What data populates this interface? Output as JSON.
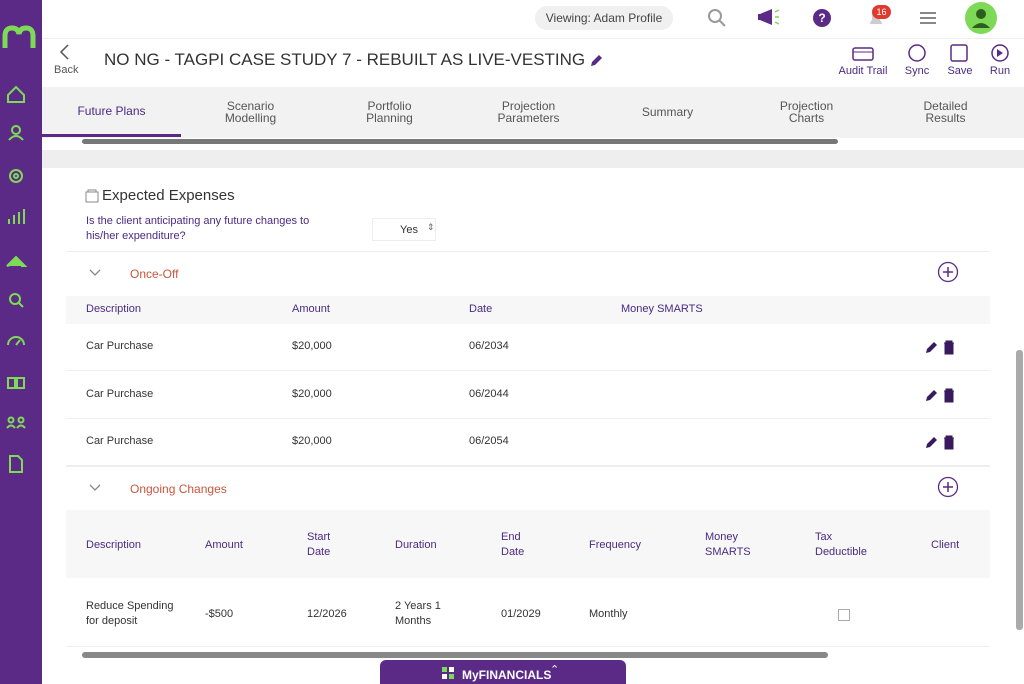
{
  "header": {
    "viewing": "Viewing: Adam Profile",
    "notifications": "16",
    "back": "Back",
    "title": "NO NG - TAGPI CASE STUDY 7 - REBUILT AS LIVE-VESTING",
    "actions": [
      "Audit Trail",
      "Sync",
      "Save",
      "Run"
    ]
  },
  "tabs": [
    "Future Plans",
    "Scenario Modelling",
    "Portfolio Planning",
    "Projection Parameters",
    "Summary",
    "Projection Charts",
    "Detailed Results"
  ],
  "active_tab": 0,
  "section": {
    "title": "Expected Expenses",
    "question": "Is the client anticipating any future changes to his/her expenditure?",
    "answer": "Yes"
  },
  "once_off": {
    "title": "Once-Off",
    "columns": [
      "Description",
      "Amount",
      "Date",
      "Money SMARTS"
    ],
    "rows": [
      [
        "Car Purchase",
        "$20,000",
        "06/2034"
      ],
      [
        "Car Purchase",
        "$20,000",
        "06/2044"
      ],
      [
        "Car Purchase",
        "$20,000",
        "06/2054"
      ]
    ]
  },
  "ongoing": {
    "title": "Ongoing Changes",
    "columns": [
      "Description",
      "Amount",
      "Start Date",
      "Duration",
      "End Date",
      "Frequency",
      "Money SMARTS",
      "Tax Deductible",
      "Client"
    ],
    "rows": [
      [
        "Reduce Spending for deposit",
        "-$500",
        "12/2026",
        "2 Years 1 Months",
        "01/2029",
        "Monthly"
      ]
    ]
  },
  "footer": "MyFINANCIALS"
}
